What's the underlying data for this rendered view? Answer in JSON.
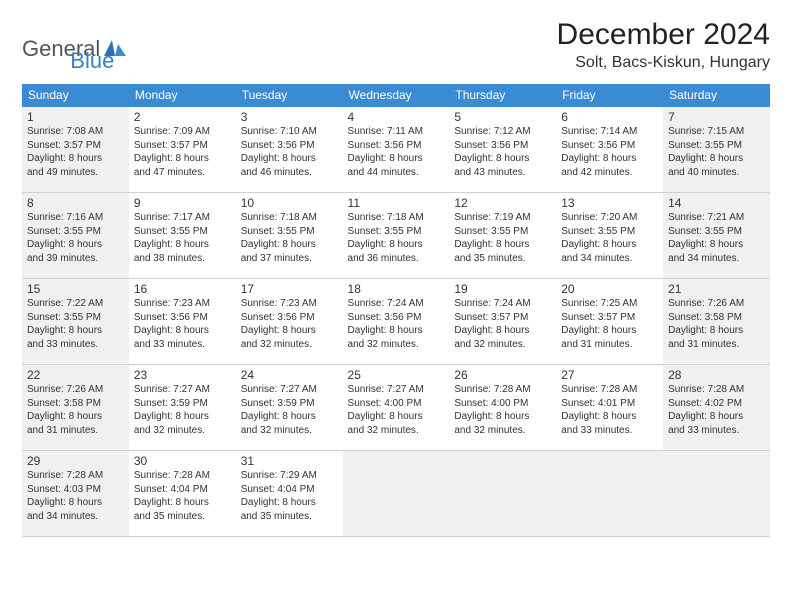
{
  "brand": {
    "part1": "General",
    "part2": "Blue"
  },
  "title": "December 2024",
  "location": "Solt, Bacs-Kiskun, Hungary",
  "colors": {
    "header_bg": "#3b8bd4",
    "header_text": "#ffffff",
    "border": "#3b8bd4",
    "shaded_bg": "#f0f0f0",
    "text": "#333333",
    "brand_accent": "#3b7fc4"
  },
  "day_names": [
    "Sunday",
    "Monday",
    "Tuesday",
    "Wednesday",
    "Thursday",
    "Friday",
    "Saturday"
  ],
  "weeks": [
    [
      {
        "n": "1",
        "sr": "Sunrise: 7:08 AM",
        "ss": "Sunset: 3:57 PM",
        "d1": "Daylight: 8 hours",
        "d2": "and 49 minutes.",
        "shaded": true
      },
      {
        "n": "2",
        "sr": "Sunrise: 7:09 AM",
        "ss": "Sunset: 3:57 PM",
        "d1": "Daylight: 8 hours",
        "d2": "and 47 minutes."
      },
      {
        "n": "3",
        "sr": "Sunrise: 7:10 AM",
        "ss": "Sunset: 3:56 PM",
        "d1": "Daylight: 8 hours",
        "d2": "and 46 minutes."
      },
      {
        "n": "4",
        "sr": "Sunrise: 7:11 AM",
        "ss": "Sunset: 3:56 PM",
        "d1": "Daylight: 8 hours",
        "d2": "and 44 minutes."
      },
      {
        "n": "5",
        "sr": "Sunrise: 7:12 AM",
        "ss": "Sunset: 3:56 PM",
        "d1": "Daylight: 8 hours",
        "d2": "and 43 minutes."
      },
      {
        "n": "6",
        "sr": "Sunrise: 7:14 AM",
        "ss": "Sunset: 3:56 PM",
        "d1": "Daylight: 8 hours",
        "d2": "and 42 minutes."
      },
      {
        "n": "7",
        "sr": "Sunrise: 7:15 AM",
        "ss": "Sunset: 3:55 PM",
        "d1": "Daylight: 8 hours",
        "d2": "and 40 minutes.",
        "shaded": true
      }
    ],
    [
      {
        "n": "8",
        "sr": "Sunrise: 7:16 AM",
        "ss": "Sunset: 3:55 PM",
        "d1": "Daylight: 8 hours",
        "d2": "and 39 minutes.",
        "shaded": true
      },
      {
        "n": "9",
        "sr": "Sunrise: 7:17 AM",
        "ss": "Sunset: 3:55 PM",
        "d1": "Daylight: 8 hours",
        "d2": "and 38 minutes."
      },
      {
        "n": "10",
        "sr": "Sunrise: 7:18 AM",
        "ss": "Sunset: 3:55 PM",
        "d1": "Daylight: 8 hours",
        "d2": "and 37 minutes."
      },
      {
        "n": "11",
        "sr": "Sunrise: 7:18 AM",
        "ss": "Sunset: 3:55 PM",
        "d1": "Daylight: 8 hours",
        "d2": "and 36 minutes."
      },
      {
        "n": "12",
        "sr": "Sunrise: 7:19 AM",
        "ss": "Sunset: 3:55 PM",
        "d1": "Daylight: 8 hours",
        "d2": "and 35 minutes."
      },
      {
        "n": "13",
        "sr": "Sunrise: 7:20 AM",
        "ss": "Sunset: 3:55 PM",
        "d1": "Daylight: 8 hours",
        "d2": "and 34 minutes."
      },
      {
        "n": "14",
        "sr": "Sunrise: 7:21 AM",
        "ss": "Sunset: 3:55 PM",
        "d1": "Daylight: 8 hours",
        "d2": "and 34 minutes.",
        "shaded": true
      }
    ],
    [
      {
        "n": "15",
        "sr": "Sunrise: 7:22 AM",
        "ss": "Sunset: 3:55 PM",
        "d1": "Daylight: 8 hours",
        "d2": "and 33 minutes.",
        "shaded": true
      },
      {
        "n": "16",
        "sr": "Sunrise: 7:23 AM",
        "ss": "Sunset: 3:56 PM",
        "d1": "Daylight: 8 hours",
        "d2": "and 33 minutes."
      },
      {
        "n": "17",
        "sr": "Sunrise: 7:23 AM",
        "ss": "Sunset: 3:56 PM",
        "d1": "Daylight: 8 hours",
        "d2": "and 32 minutes."
      },
      {
        "n": "18",
        "sr": "Sunrise: 7:24 AM",
        "ss": "Sunset: 3:56 PM",
        "d1": "Daylight: 8 hours",
        "d2": "and 32 minutes."
      },
      {
        "n": "19",
        "sr": "Sunrise: 7:24 AM",
        "ss": "Sunset: 3:57 PM",
        "d1": "Daylight: 8 hours",
        "d2": "and 32 minutes."
      },
      {
        "n": "20",
        "sr": "Sunrise: 7:25 AM",
        "ss": "Sunset: 3:57 PM",
        "d1": "Daylight: 8 hours",
        "d2": "and 31 minutes."
      },
      {
        "n": "21",
        "sr": "Sunrise: 7:26 AM",
        "ss": "Sunset: 3:58 PM",
        "d1": "Daylight: 8 hours",
        "d2": "and 31 minutes.",
        "shaded": true
      }
    ],
    [
      {
        "n": "22",
        "sr": "Sunrise: 7:26 AM",
        "ss": "Sunset: 3:58 PM",
        "d1": "Daylight: 8 hours",
        "d2": "and 31 minutes.",
        "shaded": true
      },
      {
        "n": "23",
        "sr": "Sunrise: 7:27 AM",
        "ss": "Sunset: 3:59 PM",
        "d1": "Daylight: 8 hours",
        "d2": "and 32 minutes."
      },
      {
        "n": "24",
        "sr": "Sunrise: 7:27 AM",
        "ss": "Sunset: 3:59 PM",
        "d1": "Daylight: 8 hours",
        "d2": "and 32 minutes."
      },
      {
        "n": "25",
        "sr": "Sunrise: 7:27 AM",
        "ss": "Sunset: 4:00 PM",
        "d1": "Daylight: 8 hours",
        "d2": "and 32 minutes."
      },
      {
        "n": "26",
        "sr": "Sunrise: 7:28 AM",
        "ss": "Sunset: 4:00 PM",
        "d1": "Daylight: 8 hours",
        "d2": "and 32 minutes."
      },
      {
        "n": "27",
        "sr": "Sunrise: 7:28 AM",
        "ss": "Sunset: 4:01 PM",
        "d1": "Daylight: 8 hours",
        "d2": "and 33 minutes."
      },
      {
        "n": "28",
        "sr": "Sunrise: 7:28 AM",
        "ss": "Sunset: 4:02 PM",
        "d1": "Daylight: 8 hours",
        "d2": "and 33 minutes.",
        "shaded": true
      }
    ],
    [
      {
        "n": "29",
        "sr": "Sunrise: 7:28 AM",
        "ss": "Sunset: 4:03 PM",
        "d1": "Daylight: 8 hours",
        "d2": "and 34 minutes.",
        "shaded": true
      },
      {
        "n": "30",
        "sr": "Sunrise: 7:28 AM",
        "ss": "Sunset: 4:04 PM",
        "d1": "Daylight: 8 hours",
        "d2": "and 35 minutes."
      },
      {
        "n": "31",
        "sr": "Sunrise: 7:29 AM",
        "ss": "Sunset: 4:04 PM",
        "d1": "Daylight: 8 hours",
        "d2": "and 35 minutes."
      },
      {
        "empty": true,
        "shaded": true
      },
      {
        "empty": true,
        "shaded": true
      },
      {
        "empty": true,
        "shaded": true
      },
      {
        "empty": true,
        "shaded": true
      }
    ]
  ]
}
